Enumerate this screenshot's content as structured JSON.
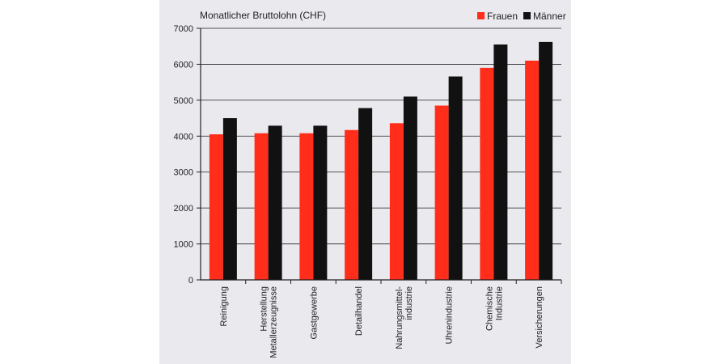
{
  "colors": {
    "frauen": "#ff2d1a",
    "maenner": "#111111"
  },
  "chart_data": {
    "type": "bar",
    "ylabel": "Monatlicher Bruttolohn (CHF)",
    "ylim": [
      0,
      7000
    ],
    "yticks": [
      "0",
      "1000",
      "2000",
      "3000",
      "4000",
      "5000",
      "6000",
      "7000"
    ],
    "grid": true,
    "legend_position": "top-right",
    "categories": [
      [
        "Reinigung"
      ],
      [
        "Herstellung",
        "Metallerzeugnisse"
      ],
      [
        "Gastgewerbe"
      ],
      [
        "Detailhandel"
      ],
      [
        "Nahrungsmittel-",
        "industrie"
      ],
      [
        "Uhrenindustrie"
      ],
      [
        "Chemische",
        "Industrie"
      ],
      [
        "Versicherungen"
      ]
    ],
    "series": [
      {
        "name": "Frauen",
        "values": [
          4050,
          4080,
          4080,
          4170,
          4360,
          4850,
          5900,
          6100
        ]
      },
      {
        "name": "Männer",
        "values": [
          4500,
          4290,
          4290,
          4780,
          5100,
          5660,
          6550,
          6620
        ]
      }
    ]
  }
}
